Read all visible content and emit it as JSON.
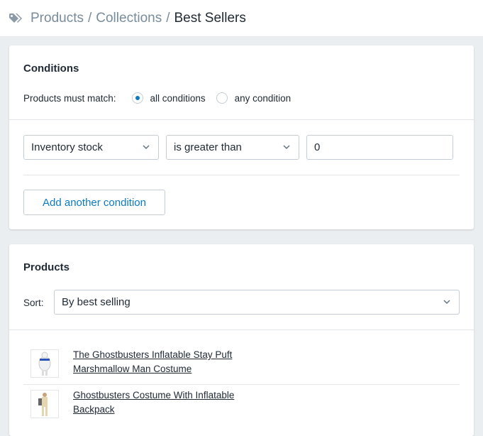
{
  "breadcrumb": {
    "items": [
      "Products",
      "Collections"
    ],
    "current": "Best Sellers",
    "separator": "/",
    "icon": "tag-icon"
  },
  "conditions": {
    "title": "Conditions",
    "match_label": "Products must match:",
    "options": [
      "all conditions",
      "any condition"
    ],
    "selected": "all conditions",
    "rule": {
      "field": "Inventory stock",
      "operator": "is greater than",
      "value": "0"
    },
    "add_label": "Add another condition"
  },
  "products": {
    "title": "Products",
    "sort_label": "Sort:",
    "sort_value": "By best selling",
    "items": [
      {
        "name": "The Ghostbusters Inflatable Stay Puft Marshmallow Man Costume"
      },
      {
        "name": "Ghostbusters Costume With Inflatable Backpack"
      }
    ]
  },
  "colors": {
    "accent": "#0a7ac3",
    "background": "#ebeef0"
  }
}
